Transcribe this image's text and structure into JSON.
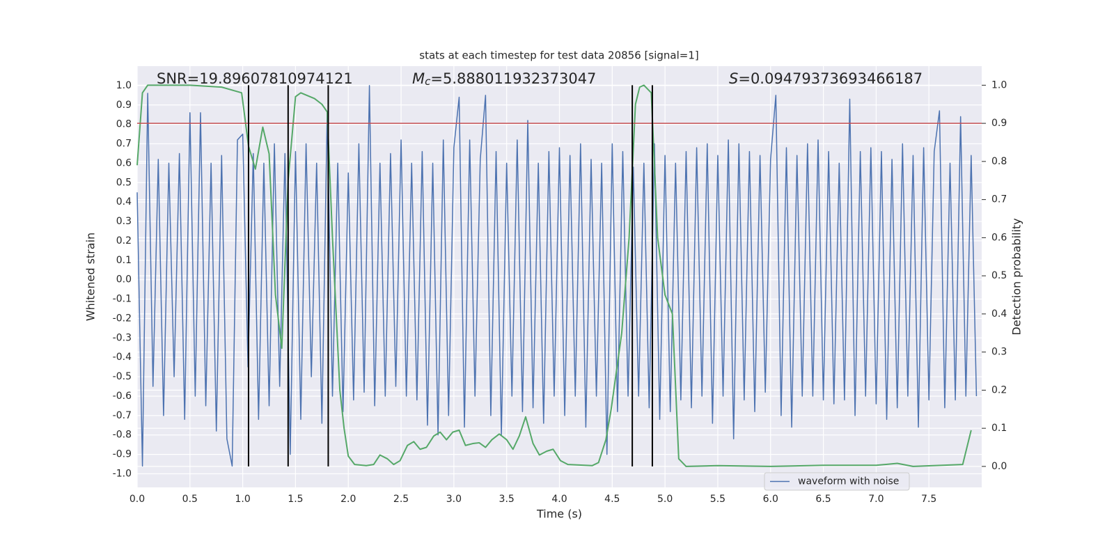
{
  "chart_data": {
    "type": "line",
    "title": "stats at each timestep for test data 20856 [signal=1]",
    "x_label": "Time (s)",
    "y_label": "Whitened strain",
    "y2_label": "Detection probability",
    "xlim": [
      0,
      8
    ],
    "ylim": [
      -1.07,
      1.1
    ],
    "y2lim": [
      -0.055,
      1.05
    ],
    "xticks": [
      {
        "value": 0,
        "label": "0.0"
      },
      0.5,
      {
        "value": 1,
        "label": "1.0"
      },
      1.5,
      {
        "value": 2,
        "label": "2.0"
      },
      2.5,
      {
        "value": 3,
        "label": "3.0"
      },
      3.5,
      {
        "value": 4,
        "label": "4.0"
      },
      4.5,
      {
        "value": 5,
        "label": "5.0"
      },
      5.5,
      {
        "value": 6,
        "label": "6.0"
      },
      6.5,
      {
        "value": 7,
        "label": "7.0"
      },
      7.5
    ],
    "yticks": [
      {
        "value": -1,
        "label": "-1.0"
      },
      -0.9,
      -0.8,
      -0.7,
      -0.6,
      -0.5,
      -0.4,
      -0.3,
      -0.2,
      -0.1,
      {
        "value": 0,
        "label": "0.0"
      },
      0.1,
      0.2,
      0.3,
      0.4,
      0.5,
      0.6,
      0.7,
      0.8,
      0.9,
      {
        "value": 1,
        "label": "1.0"
      }
    ],
    "y2ticks": [
      {
        "value": 0,
        "label": "0.0"
      },
      0.1,
      0.2,
      0.3,
      0.4,
      0.5,
      0.6,
      0.7,
      0.8,
      0.9,
      {
        "value": 1,
        "label": "1.0"
      }
    ],
    "grid": true,
    "series": [
      {
        "name": "waveform with noise",
        "color": "#4c72b0",
        "x": [
          0,
          0.05,
          0.1,
          0.15,
          0.2,
          0.25,
          0.3,
          0.35,
          0.4,
          0.45,
          0.5,
          0.55,
          0.6,
          0.65,
          0.7,
          0.75,
          0.8,
          0.85,
          0.9,
          0.95,
          1,
          1.05,
          1.1,
          1.15,
          1.2,
          1.25,
          1.3,
          1.35,
          1.4,
          1.45,
          1.5,
          1.55,
          1.6,
          1.65,
          1.7,
          1.75,
          1.8,
          1.85,
          1.9,
          1.95,
          2,
          2.05,
          2.1,
          2.15,
          2.2,
          2.25,
          2.3,
          2.35,
          2.4,
          2.45,
          2.5,
          2.55,
          2.6,
          2.65,
          2.7,
          2.75,
          2.8,
          2.85,
          2.9,
          2.95,
          3,
          3.05,
          3.1,
          3.15,
          3.2,
          3.25,
          3.3,
          3.35,
          3.4,
          3.45,
          3.5,
          3.55,
          3.6,
          3.65,
          3.7,
          3.75,
          3.8,
          3.85,
          3.9,
          3.95,
          4,
          4.05,
          4.1,
          4.15,
          4.2,
          4.25,
          4.3,
          4.35,
          4.4,
          4.45,
          4.5,
          4.55,
          4.6,
          4.65,
          4.7,
          4.75,
          4.8,
          4.85,
          4.9,
          4.95,
          5,
          5.05,
          5.1,
          5.15,
          5.2,
          5.25,
          5.3,
          5.35,
          5.4,
          5.45,
          5.5,
          5.55,
          5.6,
          5.65,
          5.7,
          5.75,
          5.8,
          5.85,
          5.9,
          5.95,
          6,
          6.05,
          6.1,
          6.15,
          6.2,
          6.25,
          6.3,
          6.35,
          6.4,
          6.45,
          6.5,
          6.55,
          6.6,
          6.65,
          6.7,
          6.75,
          6.8,
          6.85,
          6.9,
          6.95,
          7,
          7.05,
          7.1,
          7.15,
          7.2,
          7.25,
          7.3,
          7.35,
          7.4,
          7.45,
          7.5,
          7.55,
          7.6,
          7.65,
          7.7,
          7.75,
          7.8,
          7.85,
          7.9,
          7.95
        ],
        "values": [
          0.45,
          -0.96,
          0.96,
          -0.55,
          0.62,
          -0.7,
          0.6,
          -0.5,
          0.65,
          -0.72,
          0.86,
          -0.6,
          0.86,
          -0.65,
          0.6,
          -0.78,
          0.64,
          -0.82,
          -0.96,
          0.72,
          0.75,
          -0.45,
          0.65,
          -0.72,
          0.6,
          -0.65,
          0.7,
          -0.55,
          0.65,
          -0.9,
          0.66,
          -0.72,
          0.7,
          -0.5,
          0.6,
          -0.74,
          0.86,
          -0.6,
          0.6,
          -0.68,
          0.55,
          -0.62,
          0.7,
          -0.58,
          1.0,
          -0.65,
          0.6,
          -0.6,
          0.65,
          -0.55,
          0.72,
          -0.6,
          0.6,
          -0.62,
          0.66,
          -0.75,
          0.6,
          -0.8,
          0.72,
          -0.7,
          0.68,
          0.94,
          -0.76,
          0.72,
          -0.6,
          0.62,
          0.95,
          -0.7,
          0.66,
          -0.8,
          0.6,
          -0.6,
          0.72,
          -0.68,
          0.82,
          -0.66,
          0.6,
          -0.74,
          0.66,
          -0.6,
          0.68,
          -0.7,
          0.64,
          -0.6,
          0.7,
          -0.76,
          0.62,
          -0.6,
          0.6,
          -0.9,
          0.7,
          -0.68,
          0.66,
          -0.6,
          0.58,
          -0.6,
          0.6,
          -0.66,
          0.7,
          -0.72,
          0.64,
          -0.68,
          0.6,
          -0.62,
          0.66,
          -0.66,
          0.68,
          -0.6,
          0.7,
          -0.74,
          0.64,
          -0.6,
          0.72,
          -0.82,
          0.7,
          -0.62,
          0.66,
          -0.68,
          0.64,
          -0.58,
          0.62,
          0.95,
          -0.7,
          0.68,
          -0.76,
          0.64,
          -0.6,
          0.7,
          -0.6,
          0.72,
          -0.62,
          0.66,
          -0.64,
          0.6,
          -0.62,
          0.93,
          -0.7,
          0.66,
          -0.6,
          0.68,
          -0.64,
          0.66,
          -0.72,
          0.62,
          -0.66,
          0.7,
          -0.6,
          0.64,
          -0.76,
          0.68,
          -0.62,
          0.66,
          0.87,
          -0.66,
          0.6,
          -0.62,
          0.84,
          -0.6,
          0.64,
          -0.6
        ]
      },
      {
        "color": "#55a868",
        "axis": "y2",
        "x": [
          0,
          0.05,
          0.1,
          0.5,
          0.8,
          0.99,
          1.055,
          1.12,
          1.19,
          1.25,
          1.31,
          1.37,
          1.43,
          1.5,
          1.55,
          1.68,
          1.75,
          1.8,
          1.85,
          1.92,
          1.96,
          2.0,
          2.06,
          2.17,
          2.24,
          2.3,
          2.37,
          2.43,
          2.49,
          2.56,
          2.62,
          2.68,
          2.74,
          2.81,
          2.87,
          2.93,
          2.99,
          3.05,
          3.11,
          3.18,
          3.24,
          3.3,
          3.36,
          3.43,
          3.5,
          3.56,
          3.62,
          3.68,
          3.75,
          3.81,
          3.88,
          3.94,
          4.01,
          4.08,
          4.31,
          4.37,
          4.44,
          4.49,
          4.59,
          4.66,
          4.72,
          4.76,
          4.8,
          4.87,
          4.93,
          5.0,
          5.07,
          5.13,
          5.2,
          5.5,
          6.0,
          6.5,
          7.0,
          7.2,
          7.35,
          7.82,
          7.9
        ],
        "values": [
          0.79,
          0.98,
          1.0,
          1.0,
          0.995,
          0.98,
          0.84,
          0.78,
          0.89,
          0.82,
          0.45,
          0.31,
          0.75,
          0.97,
          0.98,
          0.965,
          0.95,
          0.93,
          0.6,
          0.2,
          0.1,
          0.027,
          0.005,
          0.002,
          0.005,
          0.03,
          0.02,
          0.005,
          0.015,
          0.055,
          0.065,
          0.045,
          0.05,
          0.08,
          0.09,
          0.07,
          0.09,
          0.095,
          0.055,
          0.06,
          0.062,
          0.05,
          0.07,
          0.085,
          0.07,
          0.045,
          0.08,
          0.13,
          0.06,
          0.03,
          0.04,
          0.045,
          0.015,
          0.005,
          0.002,
          0.01,
          0.07,
          0.15,
          0.35,
          0.6,
          0.95,
          0.995,
          1.0,
          0.98,
          0.6,
          0.45,
          0.4,
          0.02,
          0.0,
          0.002,
          0.0,
          0.003,
          0.003,
          0.008,
          0.0,
          0.005,
          0.095
        ]
      }
    ],
    "threshold": {
      "y": 0.9,
      "axis": "y2",
      "color": "#c44e52"
    },
    "vlines": {
      "x": [
        1.055,
        1.43,
        1.81,
        4.69,
        4.88
      ],
      "ymin": 0,
      "ymax": 1,
      "axis": "y2",
      "color": "#000000"
    },
    "annotations": [
      {
        "text": "SNR=19.89607810974121"
      },
      {
        "symbol": "M",
        "subscript": "c",
        "text": "=5.888011932373047"
      },
      {
        "symbol": "S",
        "text": "=0.09479373693466187"
      }
    ]
  }
}
